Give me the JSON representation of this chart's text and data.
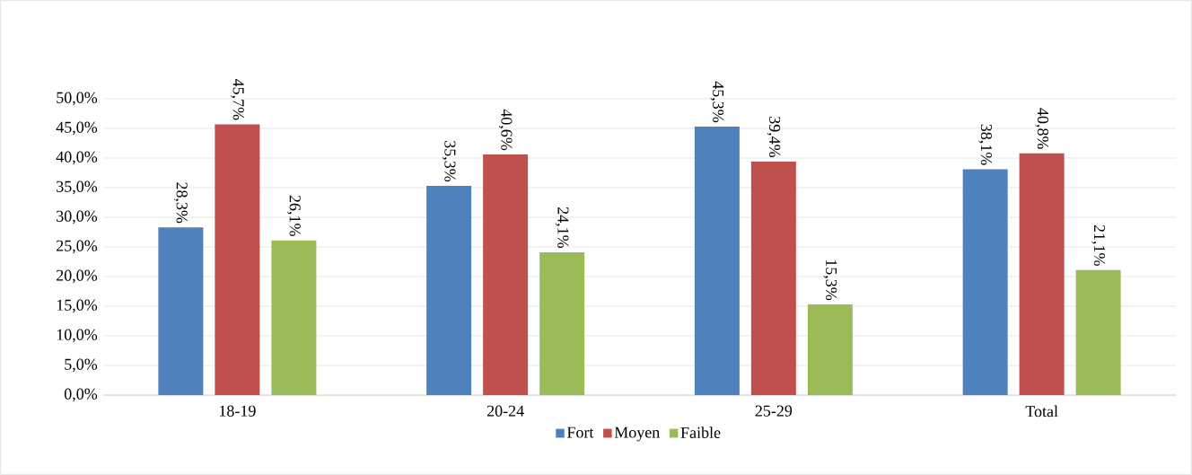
{
  "chart_data": {
    "type": "bar",
    "categories": [
      "18-19",
      "20-24",
      "25-29",
      "Total"
    ],
    "series": [
      {
        "name": "Fort",
        "color": "#4f81bd",
        "values": [
          28.3,
          35.3,
          45.3,
          38.1
        ],
        "value_labels": [
          "28,3%",
          "35,3%",
          "45,3%",
          "38,1%"
        ]
      },
      {
        "name": "Moyen",
        "color": "#c0504d",
        "values": [
          45.7,
          40.6,
          39.4,
          40.8
        ],
        "value_labels": [
          "45,7%",
          "40,6%",
          "39,4%",
          "40,8%"
        ]
      },
      {
        "name": "Faible",
        "color": "#9bbb59",
        "values": [
          26.1,
          24.1,
          15.3,
          21.1
        ],
        "value_labels": [
          "26,1%",
          "24,1%",
          "15,3%",
          "21,1%"
        ]
      }
    ],
    "ylim": [
      0,
      50
    ],
    "yticks": [
      {
        "value": 0,
        "label": "0,0%"
      },
      {
        "value": 5,
        "label": "5,0%"
      },
      {
        "value": 10,
        "label": "10,0%"
      },
      {
        "value": 15,
        "label": "15,0%"
      },
      {
        "value": 20,
        "label": "20,0%"
      },
      {
        "value": 25,
        "label": "25,0%"
      },
      {
        "value": 30,
        "label": "30,0%"
      },
      {
        "value": 35,
        "label": "35,0%"
      },
      {
        "value": 40,
        "label": "40,0%"
      },
      {
        "value": 45,
        "label": "45,0%"
      },
      {
        "value": 50,
        "label": "50,0%"
      }
    ],
    "grid": "y",
    "legend": "bottom"
  }
}
